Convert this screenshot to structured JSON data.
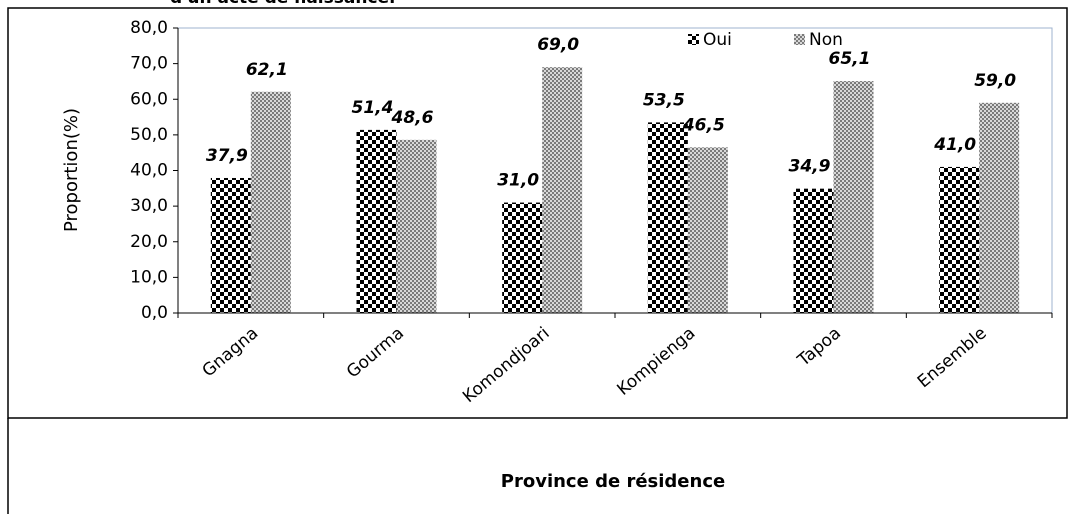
{
  "chart_data": {
    "type": "bar",
    "title": "d'un acte de naissance.",
    "categories": [
      "Gnagna",
      "Gourma",
      "Komondjoari",
      "Kompienga",
      "Tapoa",
      "Ensemble"
    ],
    "series": [
      {
        "name": "Oui",
        "color": "#000000",
        "values": [
          37.9,
          51.4,
          31.0,
          53.5,
          34.9,
          41.0
        ],
        "value_labels": [
          "37,9",
          "51,4",
          "31,0",
          "53,5",
          "34,9",
          "41,0"
        ]
      },
      {
        "name": "Non",
        "color": "#7a7a7a",
        "values": [
          62.1,
          48.6,
          69.0,
          46.5,
          65.1,
          59.0
        ],
        "value_labels": [
          "62,1",
          "48,6",
          "69,0",
          "46,5",
          "65,1",
          "59,0"
        ]
      }
    ],
    "ylim": [
      0,
      80
    ],
    "yticks": [
      {
        "value": 0,
        "label": "0,0"
      },
      {
        "value": 10,
        "label": "10,0"
      },
      {
        "value": 20,
        "label": "20,0"
      },
      {
        "value": 30,
        "label": "30,0"
      },
      {
        "value": 40,
        "label": "40,0"
      },
      {
        "value": 50,
        "label": "50,0"
      },
      {
        "value": 60,
        "label": "60,0"
      },
      {
        "value": 70,
        "label": "70,0"
      },
      {
        "value": 80,
        "label": "80,0"
      }
    ],
    "y_label": "Proportion(%)",
    "x_label": "Province de résidence",
    "legend": "top"
  }
}
